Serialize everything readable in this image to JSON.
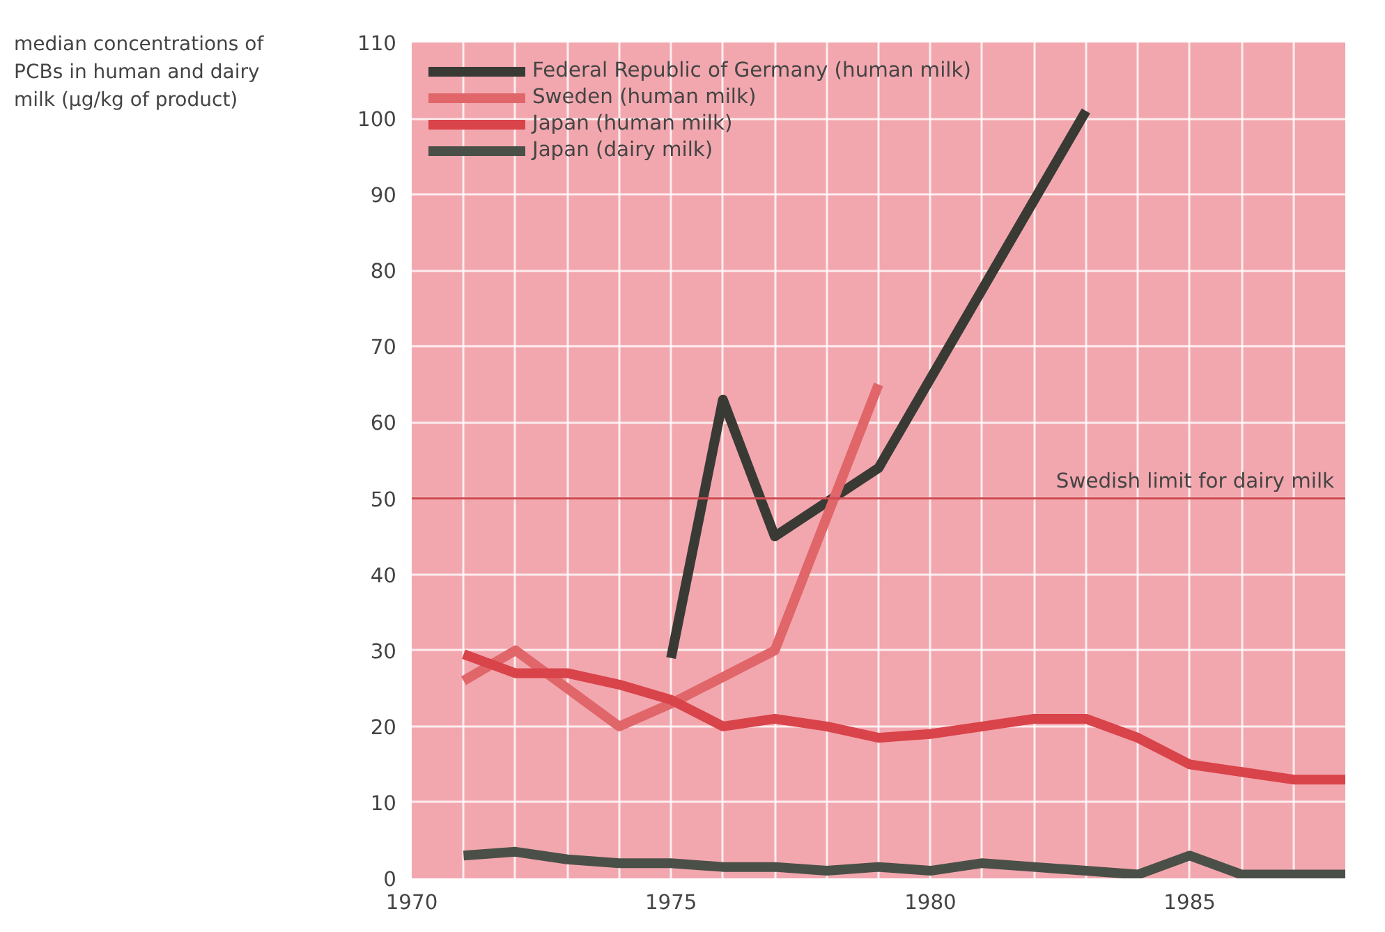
{
  "chart_data": {
    "type": "line",
    "ylabel": "median concentrations of PCBs in human and dairy milk (µg/kg of product)",
    "xlim": [
      1970,
      1988
    ],
    "xticks": [
      1970,
      1975,
      1980,
      1985
    ],
    "ylim": [
      0,
      110
    ],
    "yticks": [
      0,
      10,
      20,
      30,
      40,
      50,
      60,
      70,
      80,
      90,
      100,
      110
    ],
    "grid": true,
    "legend": "top left",
    "line_style": "solid",
    "series": [
      {
        "name": "Federal Republic of Germany (human milk)",
        "color": "#3a3a35",
        "x": [
          1975,
          1976,
          1977,
          1979,
          1983
        ],
        "values": [
          29,
          63,
          45,
          54,
          101
        ]
      },
      {
        "name": "Sweden (human milk)",
        "color": "#e0666a",
        "x": [
          1971,
          1972,
          1974,
          1975,
          1977,
          1979
        ],
        "values": [
          26,
          30,
          20,
          23,
          30,
          65
        ]
      },
      {
        "name": "Japan (human milk)",
        "color": "#d9434a",
        "x": [
          1971,
          1972,
          1973,
          1974,
          1975,
          1976,
          1977,
          1978,
          1979,
          1980,
          1981,
          1982,
          1983,
          1984,
          1985,
          1986,
          1987,
          1988
        ],
        "values": [
          29.5,
          27,
          27,
          25.5,
          23.5,
          20,
          21,
          20,
          18.5,
          19,
          20,
          21,
          21,
          18.5,
          15,
          14,
          13,
          13
        ]
      },
      {
        "name": "Japan (dairy milk)",
        "color": "#4a5048",
        "x": [
          1971,
          1972,
          1973,
          1974,
          1975,
          1976,
          1977,
          1978,
          1979,
          1980,
          1981,
          1982,
          1983,
          1984,
          1985,
          1986,
          1987,
          1988
        ],
        "values": [
          3,
          3.5,
          2.5,
          2,
          2,
          1.5,
          1.5,
          1,
          1.5,
          1,
          2,
          1.5,
          1,
          0.5,
          3,
          0.5,
          0.5,
          0.5
        ]
      }
    ],
    "ref_lines": [
      {
        "axis": "y",
        "value": 50,
        "label": "Swedish limit for dairy milk",
        "color": "#d0484f"
      }
    ]
  }
}
